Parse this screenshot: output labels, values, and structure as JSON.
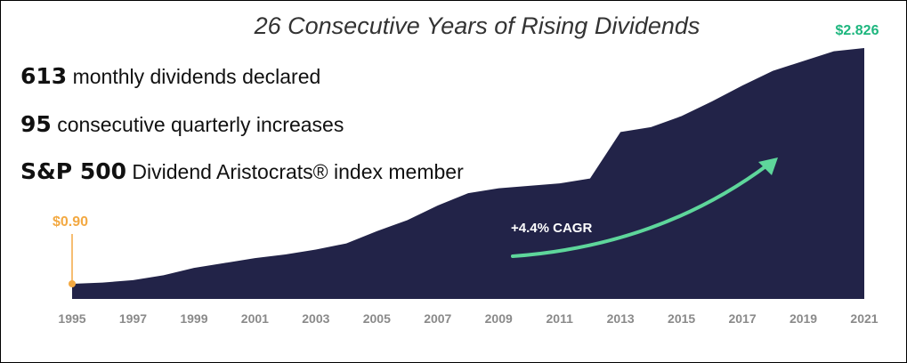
{
  "chart_data": {
    "type": "area",
    "title": "26 Consecutive Years of Rising Dividends",
    "x": [
      1995,
      1996,
      1997,
      1998,
      1999,
      2000,
      2001,
      2002,
      2003,
      2004,
      2005,
      2006,
      2007,
      2008,
      2009,
      2010,
      2011,
      2012,
      2013,
      2014,
      2015,
      2016,
      2017,
      2018,
      2019,
      2020,
      2021
    ],
    "values": [
      0.9,
      0.91,
      0.93,
      0.97,
      1.03,
      1.07,
      1.11,
      1.14,
      1.18,
      1.23,
      1.33,
      1.42,
      1.54,
      1.64,
      1.68,
      1.7,
      1.72,
      1.76,
      2.14,
      2.18,
      2.27,
      2.39,
      2.52,
      2.64,
      2.72,
      2.8,
      2.826
    ],
    "value_labels": [
      "$0.90",
      null,
      null,
      null,
      null,
      null,
      null,
      null,
      null,
      null,
      null,
      null,
      null,
      null,
      null,
      null,
      null,
      null,
      null,
      null,
      null,
      null,
      null,
      null,
      null,
      null,
      "$2.826"
    ],
    "color": "#222348",
    "xlim": [
      1995,
      2021
    ],
    "xticks": [
      1995,
      1997,
      1999,
      2001,
      2003,
      2005,
      2007,
      2009,
      2011,
      2013,
      2015,
      2017,
      2019,
      2021
    ],
    "annotation": "+4.4% CAGR",
    "stats": [
      {
        "number": "613",
        "text": "monthly dividends declared"
      },
      {
        "number": "95",
        "text": "consecutive quarterly increases"
      },
      {
        "number": "S&P 500",
        "text": "Dividend Aristocrats® index member"
      }
    ]
  }
}
